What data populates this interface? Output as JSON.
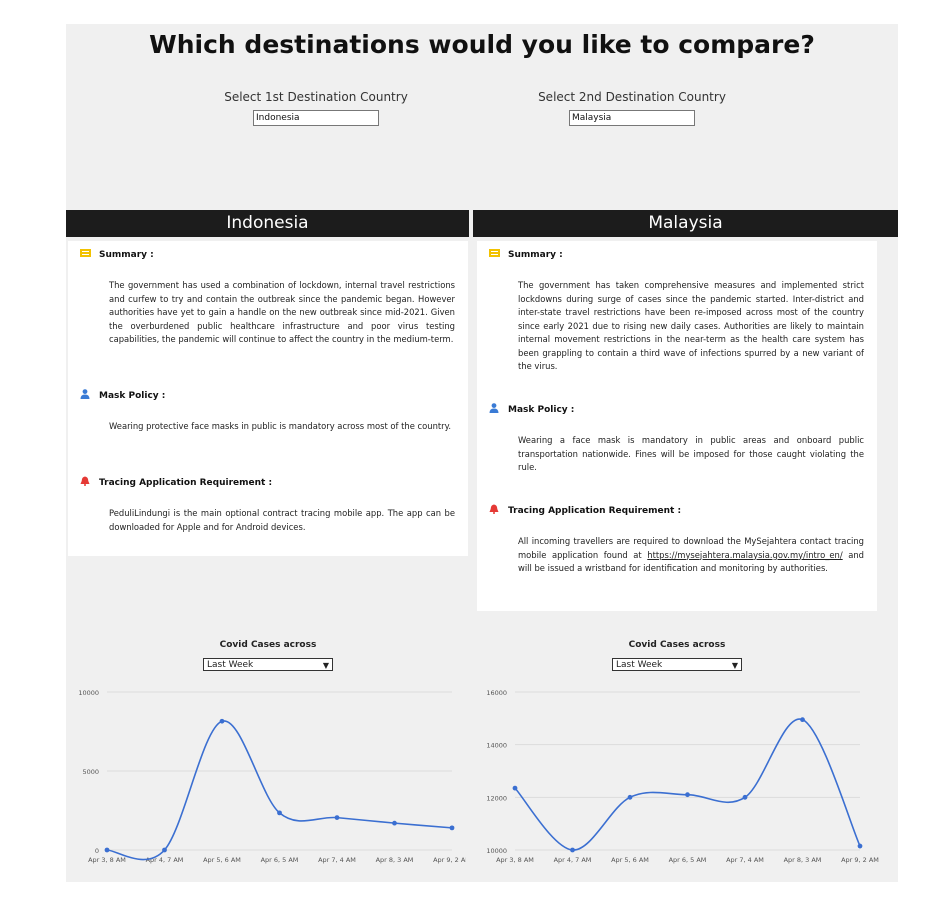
{
  "heading": "Which destinations would you like to compare?",
  "selectors": {
    "first": {
      "label": "Select 1st Destination Country",
      "value": "Indonesia"
    },
    "second": {
      "label": "Select 2nd Destination Country",
      "value": "Malaysia"
    }
  },
  "left": {
    "country": "Indonesia",
    "summary_title": "Summary :",
    "summary_text": "The government has used a combination of lockdown, internal travel restrictions and curfew to try and contain the outbreak since the pandemic began. However authorities have yet to gain a handle on the new outbreak since mid-2021. Given the overburdened public healthcare infrastructure and poor virus testing capabilities, the pandemic will continue to affect the country in the medium-term.",
    "mask_title": "Mask Policy :",
    "mask_text": "Wearing protective face masks in public is mandatory across most of the country.",
    "tracing_title": "Tracing Application Requirement :",
    "tracing_text": "PeduliLindungi is the main optional contract tracing mobile app. The app can be downloaded for Apple and for Android devices.",
    "chart_title": "Covid Cases across",
    "range_option": "Last Week"
  },
  "right": {
    "country": "Malaysia",
    "summary_title": "Summary :",
    "summary_text": "The government has taken comprehensive measures and implemented strict lockdowns during surge of cases since the pandemic started. Inter-district and inter-state travel restrictions have been re-imposed across most of the country since early 2021 due to rising new daily cases. Authorities are likely to maintain internal movement restrictions in the near-term as the health care system has been grappling to contain a third wave of infections spurred by a new variant of the virus.",
    "mask_title": "Mask Policy :",
    "mask_text": "Wearing a face mask is mandatory in public areas and onboard public transportation nationwide. Fines will be imposed for those caught violating the rule.",
    "tracing_title": "Tracing Application Requirement :",
    "tracing_text_before": "All incoming travellers are required to download the MySejahtera contact tracing mobile application found at",
    "tracing_link": "https://mysejahtera.malaysia.gov.my/intro_en/",
    "tracing_text_after": "and will be issued a wristband for identification and monitoring by authorities.",
    "chart_title": "Covid Cases across",
    "range_option": "Last Week"
  },
  "icons": {
    "summary": "list-icon",
    "mask": "person-icon",
    "tracing": "bell-icon"
  },
  "colors": {
    "summary_icon": "#f2c200",
    "mask_icon": "#3a7bd5",
    "tracing_icon": "#e53935",
    "header_bg": "#1c1c1c",
    "line": "#3b6fd1"
  },
  "chart_data": [
    {
      "type": "line",
      "title": "Covid Cases across",
      "categories": [
        "Apr 3, 8 AM",
        "Apr 4, 7 AM",
        "Apr 5, 6 AM",
        "Apr 6, 5 AM",
        "Apr 7, 4 AM",
        "Apr 8, 3 AM",
        "Apr 9, 2 AM"
      ],
      "series": [
        {
          "values": [
            0,
            0,
            8150,
            2350,
            2050,
            1700,
            1400
          ]
        }
      ],
      "yticks": [
        0,
        5000,
        10000
      ],
      "ylim": [
        0,
        10000
      ],
      "grid": true,
      "curve": "smooth"
    },
    {
      "type": "line",
      "title": "Covid Cases across",
      "categories": [
        "Apr 3, 8 AM",
        "Apr 4, 7 AM",
        "Apr 5, 6 AM",
        "Apr 6, 5 AM",
        "Apr 7, 4 AM",
        "Apr 8, 3 AM",
        "Apr 9, 2 AM"
      ],
      "series": [
        {
          "values": [
            12350,
            10000,
            12000,
            12100,
            12000,
            14950,
            10150
          ]
        }
      ],
      "yticks": [
        10000,
        12000,
        14000,
        16000
      ],
      "ylim": [
        10000,
        16000
      ],
      "grid": true,
      "curve": "smooth"
    }
  ]
}
